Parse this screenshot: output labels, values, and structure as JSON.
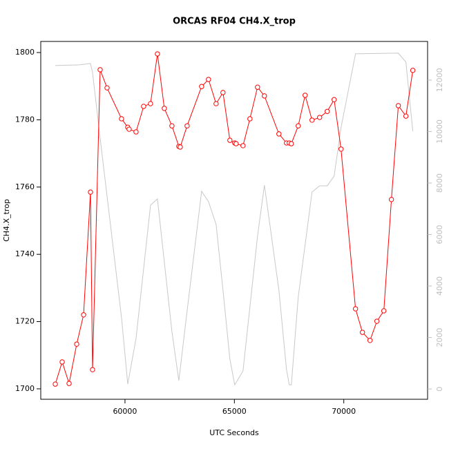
{
  "chart_data": {
    "type": "line",
    "title": "ORCAS RF04 CH4.X_trop",
    "x_label": "UTC Seconds",
    "y_label": "CH4.X_trop",
    "xlim": [
      56150,
      73830
    ],
    "xticks": [
      60000,
      65000,
      70000
    ],
    "ylim": [
      1696.9,
      1803.3
    ],
    "yticks": [
      1700,
      1720,
      1740,
      1760,
      1780,
      1800
    ],
    "y2lim": [
      -400,
      13500
    ],
    "y2ticks": [
      0,
      2000,
      4000,
      6000,
      8000,
      10000,
      12000
    ],
    "y2_color": "#bebebe",
    "grid": false,
    "series": [
      {
        "color": "#ff0000",
        "markers": true,
        "x": [
          56814,
          57129,
          57445,
          57792,
          58107,
          58423,
          58517,
          58864,
          59180,
          59842,
          60126,
          60189,
          60505,
          60852,
          61167,
          61483,
          61798,
          62145,
          62461,
          62524,
          62839,
          63502,
          63817,
          64164,
          64479,
          64795,
          65016,
          65079,
          65394,
          65710,
          66057,
          66372,
          67035,
          67382,
          67508,
          67603,
          67918,
          68233,
          68549,
          68896,
          69243,
          69558,
          69874,
          70536,
          70852,
          71199,
          71514,
          71830,
          72177,
          72492,
          72839,
          73155
        ],
        "values": [
          1701.4,
          1708.0,
          1701.6,
          1713.3,
          1722.0,
          1758.5,
          1705.7,
          1794.9,
          1789.5,
          1780.3,
          1777.8,
          1777.2,
          1776.4,
          1784.0,
          1784.8,
          1799.6,
          1783.4,
          1778.2,
          1772.1,
          1771.9,
          1778.2,
          1789.9,
          1792.0,
          1784.8,
          1788.1,
          1773.9,
          1773.1,
          1772.9,
          1772.3,
          1780.3,
          1789.7,
          1787.1,
          1775.8,
          1773.1,
          1773.1,
          1772.9,
          1778.2,
          1787.3,
          1779.9,
          1780.7,
          1782.5,
          1786.0,
          1771.3,
          1723.8,
          1716.8,
          1714.4,
          1720.1,
          1723.2,
          1756.3,
          1784.2,
          1781.1,
          1794.7
        ]
      },
      {
        "color": "#c8c8c8",
        "axis": "y2",
        "x": [
          56814,
          57918,
          58423,
          58517,
          58864,
          59842,
          60126,
          60505,
          61167,
          61483,
          62145,
          62461,
          62839,
          63502,
          63817,
          64164,
          64479,
          64795,
          65016,
          65394,
          66057,
          66372,
          67035,
          67382,
          67508,
          67603,
          67918,
          68549,
          68896,
          69243,
          69558,
          69874,
          70536,
          72492,
          72839,
          73155
        ],
        "values": [
          12564,
          12591,
          12644,
          12295,
          9745,
          2765,
          188,
          1960,
          7141,
          7383,
          2228,
          322,
          3034,
          7678,
          7275,
          6389,
          3839,
          1154,
          161,
          698,
          5933,
          7919,
          3839,
          752,
          161,
          161,
          3570,
          7651,
          7893,
          7893,
          8268,
          10148,
          13020,
          13047,
          12698,
          10013
        ]
      }
    ]
  }
}
